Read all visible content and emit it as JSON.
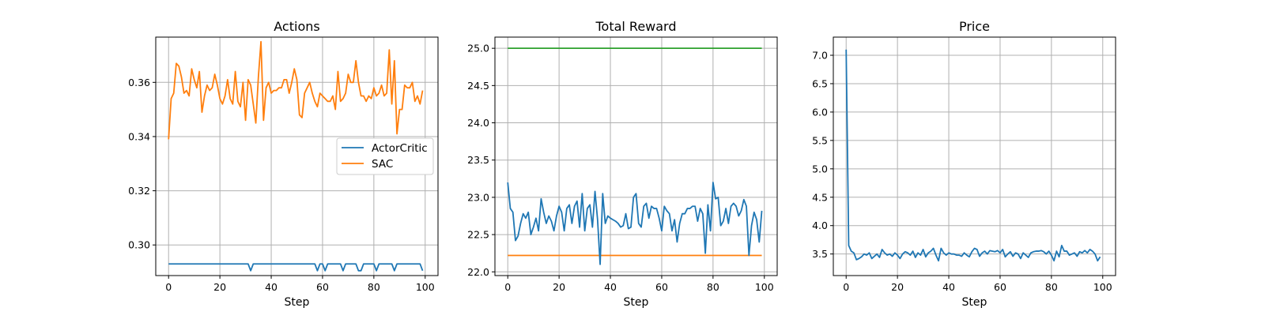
{
  "colors": {
    "blue": "#1f77b4",
    "orange": "#ff7f0e",
    "green": "#2ca02c",
    "grid": "#b0b0b0"
  },
  "chart_data": [
    {
      "type": "line",
      "title": "Actions",
      "xlabel": "Step",
      "ylabel": "",
      "xlim": [
        -5,
        105
      ],
      "ylim": [
        0.2887,
        0.3767
      ],
      "xticks": [
        0,
        20,
        40,
        60,
        80,
        100
      ],
      "yticks": [
        0.3,
        0.32,
        0.34,
        0.36
      ],
      "ytick_labels": [
        "0.30",
        "0.32",
        "0.34",
        "0.36"
      ],
      "grid": true,
      "legend_position": "center-right",
      "series": [
        {
          "name": "ActorCritic",
          "color": "#1f77b4",
          "x": [
            0,
            1,
            2,
            3,
            4,
            5,
            6,
            7,
            8,
            9,
            10,
            11,
            12,
            13,
            14,
            15,
            16,
            17,
            18,
            19,
            20,
            21,
            22,
            23,
            24,
            25,
            26,
            27,
            28,
            29,
            30,
            31,
            32,
            33,
            34,
            35,
            36,
            37,
            38,
            39,
            40,
            41,
            42,
            43,
            44,
            45,
            46,
            47,
            48,
            49,
            50,
            51,
            52,
            53,
            54,
            55,
            56,
            57,
            58,
            59,
            60,
            61,
            62,
            63,
            64,
            65,
            66,
            67,
            68,
            69,
            70,
            71,
            72,
            73,
            74,
            75,
            76,
            77,
            78,
            79,
            80,
            81,
            82,
            83,
            84,
            85,
            86,
            87,
            88,
            89,
            90,
            91,
            92,
            93,
            94,
            95,
            96,
            97,
            98,
            99
          ],
          "y": [
            0.293,
            0.293,
            0.293,
            0.293,
            0.293,
            0.293,
            0.293,
            0.293,
            0.293,
            0.293,
            0.293,
            0.293,
            0.293,
            0.293,
            0.293,
            0.293,
            0.293,
            0.293,
            0.293,
            0.293,
            0.293,
            0.293,
            0.293,
            0.293,
            0.293,
            0.293,
            0.293,
            0.293,
            0.293,
            0.293,
            0.293,
            0.293,
            0.2905,
            0.293,
            0.293,
            0.293,
            0.293,
            0.293,
            0.293,
            0.293,
            0.293,
            0.293,
            0.293,
            0.293,
            0.293,
            0.293,
            0.293,
            0.293,
            0.293,
            0.293,
            0.293,
            0.293,
            0.293,
            0.293,
            0.293,
            0.293,
            0.293,
            0.293,
            0.2905,
            0.293,
            0.293,
            0.2905,
            0.293,
            0.293,
            0.293,
            0.293,
            0.293,
            0.293,
            0.2905,
            0.293,
            0.293,
            0.293,
            0.293,
            0.293,
            0.2905,
            0.2905,
            0.293,
            0.293,
            0.293,
            0.293,
            0.293,
            0.2905,
            0.293,
            0.293,
            0.293,
            0.293,
            0.293,
            0.293,
            0.2905,
            0.293,
            0.293,
            0.293,
            0.293,
            0.293,
            0.293,
            0.293,
            0.293,
            0.293,
            0.293,
            0.2905
          ]
        },
        {
          "name": "SAC",
          "color": "#ff7f0e",
          "x": [
            0,
            1,
            2,
            3,
            4,
            5,
            6,
            7,
            8,
            9,
            10,
            11,
            12,
            13,
            14,
            15,
            16,
            17,
            18,
            19,
            20,
            21,
            22,
            23,
            24,
            25,
            26,
            27,
            28,
            29,
            30,
            31,
            32,
            33,
            34,
            35,
            36,
            37,
            38,
            39,
            40,
            41,
            42,
            43,
            44,
            45,
            46,
            47,
            48,
            49,
            50,
            51,
            52,
            53,
            54,
            55,
            56,
            57,
            58,
            59,
            60,
            61,
            62,
            63,
            64,
            65,
            66,
            67,
            68,
            69,
            70,
            71,
            72,
            73,
            74,
            75,
            76,
            77,
            78,
            79,
            80,
            81,
            82,
            83,
            84,
            85,
            86,
            87,
            88,
            89,
            90,
            91,
            92,
            93,
            94,
            95,
            96,
            97,
            98,
            99
          ],
          "y": [
            0.339,
            0.354,
            0.356,
            0.367,
            0.366,
            0.362,
            0.356,
            0.357,
            0.355,
            0.365,
            0.361,
            0.358,
            0.364,
            0.349,
            0.355,
            0.359,
            0.357,
            0.358,
            0.363,
            0.359,
            0.354,
            0.352,
            0.355,
            0.361,
            0.354,
            0.352,
            0.364,
            0.353,
            0.351,
            0.36,
            0.346,
            0.361,
            0.359,
            0.352,
            0.345,
            0.362,
            0.375,
            0.346,
            0.358,
            0.36,
            0.356,
            0.357,
            0.357,
            0.358,
            0.358,
            0.361,
            0.361,
            0.356,
            0.36,
            0.365,
            0.361,
            0.348,
            0.347,
            0.356,
            0.358,
            0.36,
            0.356,
            0.353,
            0.351,
            0.356,
            0.355,
            0.354,
            0.353,
            0.353,
            0.355,
            0.35,
            0.364,
            0.353,
            0.354,
            0.356,
            0.363,
            0.36,
            0.36,
            0.368,
            0.36,
            0.355,
            0.355,
            0.353,
            0.355,
            0.354,
            0.358,
            0.355,
            0.356,
            0.359,
            0.355,
            0.356,
            0.372,
            0.352,
            0.368,
            0.341,
            0.35,
            0.35,
            0.359,
            0.358,
            0.358,
            0.36,
            0.353,
            0.355,
            0.352,
            0.357
          ]
        }
      ]
    },
    {
      "type": "line",
      "title": "Total Reward",
      "xlabel": "Step",
      "ylabel": "",
      "xlim": [
        -5,
        105
      ],
      "ylim": [
        21.95,
        25.15
      ],
      "xticks": [
        0,
        20,
        40,
        60,
        80,
        100
      ],
      "yticks": [
        22.0,
        22.5,
        23.0,
        23.5,
        24.0,
        24.5,
        25.0
      ],
      "ytick_labels": [
        "22.0",
        "22.5",
        "23.0",
        "23.5",
        "24.0",
        "24.5",
        "25.0"
      ],
      "grid": true,
      "series": [
        {
          "color": "#2ca02c",
          "x": [
            0,
            99
          ],
          "y": [
            25.0,
            25.0
          ]
        },
        {
          "color": "#ff7f0e",
          "x": [
            0,
            99
          ],
          "y": [
            22.22,
            22.22
          ]
        },
        {
          "color": "#1f77b4",
          "x": [
            0,
            1,
            2,
            3,
            4,
            5,
            6,
            7,
            8,
            9,
            10,
            11,
            12,
            13,
            14,
            15,
            16,
            17,
            18,
            19,
            20,
            21,
            22,
            23,
            24,
            25,
            26,
            27,
            28,
            29,
            30,
            31,
            32,
            33,
            34,
            35,
            36,
            37,
            38,
            39,
            40,
            41,
            42,
            43,
            44,
            45,
            46,
            47,
            48,
            49,
            50,
            51,
            52,
            53,
            54,
            55,
            56,
            57,
            58,
            59,
            60,
            61,
            62,
            63,
            64,
            65,
            66,
            67,
            68,
            69,
            70,
            71,
            72,
            73,
            74,
            75,
            76,
            77,
            78,
            79,
            80,
            81,
            82,
            83,
            84,
            85,
            86,
            87,
            88,
            89,
            90,
            91,
            92,
            93,
            94,
            95,
            96,
            97,
            98,
            99
          ],
          "y": [
            23.2,
            22.85,
            22.8,
            22.42,
            22.48,
            22.65,
            22.78,
            22.72,
            22.8,
            22.5,
            22.6,
            22.72,
            22.55,
            22.98,
            22.8,
            22.65,
            22.75,
            22.68,
            22.55,
            22.75,
            22.88,
            22.8,
            22.55,
            22.85,
            22.9,
            22.65,
            22.88,
            22.95,
            22.6,
            23.05,
            22.55,
            22.85,
            22.9,
            22.6,
            23.08,
            22.7,
            22.1,
            23.05,
            22.65,
            22.75,
            22.72,
            22.7,
            22.68,
            22.65,
            22.6,
            22.62,
            22.78,
            22.58,
            22.6,
            23.0,
            23.05,
            22.65,
            22.6,
            22.88,
            22.92,
            22.72,
            22.88,
            22.85,
            22.85,
            22.72,
            22.55,
            22.88,
            22.82,
            22.78,
            22.55,
            22.7,
            22.4,
            22.65,
            22.78,
            22.78,
            22.85,
            22.85,
            22.88,
            22.88,
            22.68,
            22.85,
            22.78,
            22.25,
            22.9,
            22.55,
            23.2,
            22.98,
            23.0,
            22.62,
            22.68,
            22.85,
            22.65,
            22.88,
            22.92,
            22.88,
            22.75,
            22.82,
            22.97,
            22.88,
            22.22,
            22.62,
            22.8,
            22.7,
            22.4,
            22.82
          ]
        }
      ]
    },
    {
      "type": "line",
      "title": "Price",
      "xlabel": "Step",
      "ylabel": "",
      "xlim": [
        -5,
        105
      ],
      "ylim": [
        3.12,
        7.32
      ],
      "xticks": [
        0,
        20,
        40,
        60,
        80,
        100
      ],
      "yticks": [
        3.5,
        4.0,
        4.5,
        5.0,
        5.5,
        6.0,
        6.5,
        7.0
      ],
      "ytick_labels": [
        "3.5",
        "4.0",
        "4.5",
        "5.0",
        "5.5",
        "6.0",
        "6.5",
        "7.0"
      ],
      "grid": true,
      "series": [
        {
          "color": "#1f77b4",
          "x": [
            0,
            1,
            2,
            3,
            4,
            5,
            6,
            7,
            8,
            9,
            10,
            11,
            12,
            13,
            14,
            15,
            16,
            17,
            18,
            19,
            20,
            21,
            22,
            23,
            24,
            25,
            26,
            27,
            28,
            29,
            30,
            31,
            32,
            33,
            34,
            35,
            36,
            37,
            38,
            39,
            40,
            41,
            42,
            43,
            44,
            45,
            46,
            47,
            48,
            49,
            50,
            51,
            52,
            53,
            54,
            55,
            56,
            57,
            58,
            59,
            60,
            61,
            62,
            63,
            64,
            65,
            66,
            67,
            68,
            69,
            70,
            71,
            72,
            73,
            74,
            75,
            76,
            77,
            78,
            79,
            80,
            81,
            82,
            83,
            84,
            85,
            86,
            87,
            88,
            89,
            90,
            91,
            92,
            93,
            94,
            95,
            96,
            97,
            98,
            99
          ],
          "y": [
            7.1,
            3.65,
            3.55,
            3.52,
            3.4,
            3.42,
            3.45,
            3.5,
            3.48,
            3.52,
            3.42,
            3.46,
            3.5,
            3.44,
            3.58,
            3.52,
            3.48,
            3.5,
            3.46,
            3.52,
            3.48,
            3.42,
            3.5,
            3.54,
            3.52,
            3.48,
            3.55,
            3.44,
            3.52,
            3.48,
            3.58,
            3.45,
            3.52,
            3.55,
            3.6,
            3.48,
            3.38,
            3.6,
            3.52,
            3.48,
            3.52,
            3.5,
            3.5,
            3.48,
            3.48,
            3.46,
            3.52,
            3.48,
            3.45,
            3.54,
            3.6,
            3.58,
            3.46,
            3.52,
            3.55,
            3.5,
            3.56,
            3.55,
            3.54,
            3.56,
            3.52,
            3.58,
            3.45,
            3.5,
            3.54,
            3.46,
            3.52,
            3.5,
            3.42,
            3.52,
            3.48,
            3.44,
            3.52,
            3.54,
            3.55,
            3.55,
            3.56,
            3.54,
            3.5,
            3.55,
            3.48,
            3.38,
            3.55,
            3.45,
            3.65,
            3.55,
            3.55,
            3.48,
            3.5,
            3.52,
            3.46,
            3.54,
            3.52,
            3.56,
            3.52,
            3.58,
            3.55,
            3.5,
            3.38,
            3.45
          ]
        }
      ]
    }
  ]
}
